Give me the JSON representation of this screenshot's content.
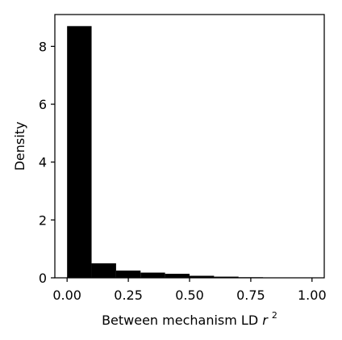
{
  "chart_data": {
    "type": "bar",
    "histogram": true,
    "bin_edges": [
      0.0,
      0.1,
      0.2,
      0.3,
      0.4,
      0.5,
      0.6,
      0.7,
      0.8,
      0.9,
      1.0
    ],
    "values": [
      8.7,
      0.5,
      0.25,
      0.18,
      0.14,
      0.07,
      0.04,
      0.02,
      0.01,
      0.01
    ],
    "xlabel": {
      "prefix": "Between mechanism LD ",
      "variable": "r",
      "superscript": "2"
    },
    "ylabel": "Density",
    "xlim": [
      -0.05,
      1.05
    ],
    "ylim": [
      0,
      9.1
    ],
    "xticks": [
      0.0,
      0.25,
      0.5,
      0.75,
      1.0
    ],
    "xtick_labels": [
      "0.00",
      "0.25",
      "0.50",
      "0.75",
      "1.00"
    ],
    "yticks": [
      0,
      2,
      4,
      6,
      8
    ],
    "ytick_labels": [
      "0",
      "2",
      "4",
      "6",
      "8"
    ],
    "grid": false,
    "bar_color": "#000000",
    "axis_color": "#000000"
  }
}
